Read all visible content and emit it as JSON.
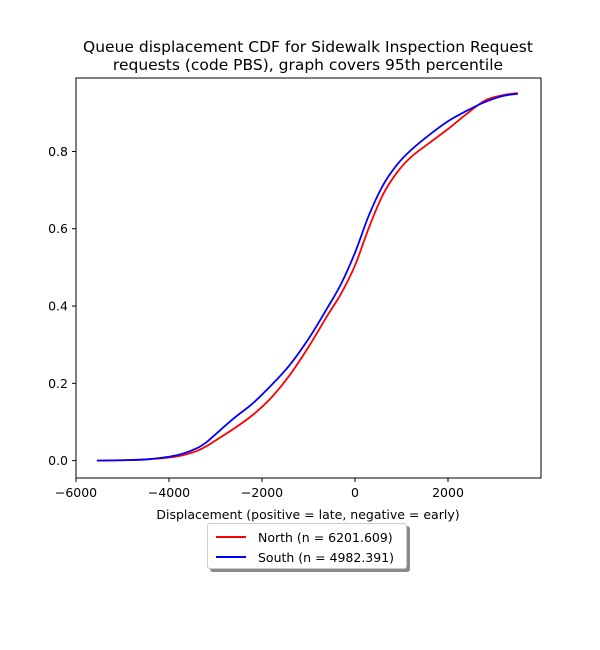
{
  "chart_data": {
    "type": "line",
    "title_lines": [
      "Queue displacement CDF for Sidewalk Inspection Request",
      "requests (code PBS), graph covers 95th percentile"
    ],
    "xlabel": "Displacement (positive = late, negative = early)",
    "ylabel": "",
    "xlim": [
      -6000,
      4000
    ],
    "ylim": [
      -0.045,
      0.99
    ],
    "x_ticks": [
      -6000,
      -4000,
      -2000,
      0,
      2000
    ],
    "x_tick_labels": [
      "−6000",
      "−4000",
      "−2000",
      "0",
      "2000"
    ],
    "y_ticks": [
      0.0,
      0.2,
      0.4,
      0.6,
      0.8
    ],
    "y_tick_labels": [
      "0.0",
      "0.2",
      "0.4",
      "0.6",
      "0.8"
    ],
    "grid": false,
    "legend_placement": "below",
    "series": [
      {
        "name": "North (n = 6201.609)",
        "color": "#ff0000",
        "x": [
          -5550,
          -5000,
          -4500,
          -4000,
          -3700,
          -3400,
          -3200,
          -3000,
          -2600,
          -2200,
          -1800,
          -1400,
          -1000,
          -600,
          -300,
          0,
          300,
          600,
          900,
          1200,
          1600,
          2000,
          2400,
          2800,
          3200,
          3500
        ],
        "y": [
          0.0,
          0.001,
          0.003,
          0.008,
          0.014,
          0.025,
          0.037,
          0.052,
          0.083,
          0.118,
          0.163,
          0.222,
          0.294,
          0.374,
          0.432,
          0.505,
          0.603,
          0.688,
          0.745,
          0.785,
          0.822,
          0.858,
          0.897,
          0.932,
          0.946,
          0.951
        ]
      },
      {
        "name": "South (n = 4982.391)",
        "color": "#0000ff",
        "x": [
          -5550,
          -5000,
          -4500,
          -4000,
          -3700,
          -3400,
          -3200,
          -3000,
          -2600,
          -2200,
          -1800,
          -1400,
          -1000,
          -600,
          -300,
          0,
          300,
          600,
          900,
          1200,
          1600,
          2000,
          2400,
          2800,
          3200,
          3500
        ],
        "y": [
          0.0,
          0.001,
          0.003,
          0.01,
          0.018,
          0.032,
          0.047,
          0.068,
          0.11,
          0.148,
          0.195,
          0.248,
          0.315,
          0.394,
          0.457,
          0.538,
          0.635,
          0.712,
          0.765,
          0.803,
          0.843,
          0.878,
          0.905,
          0.928,
          0.944,
          0.949
        ]
      }
    ]
  }
}
